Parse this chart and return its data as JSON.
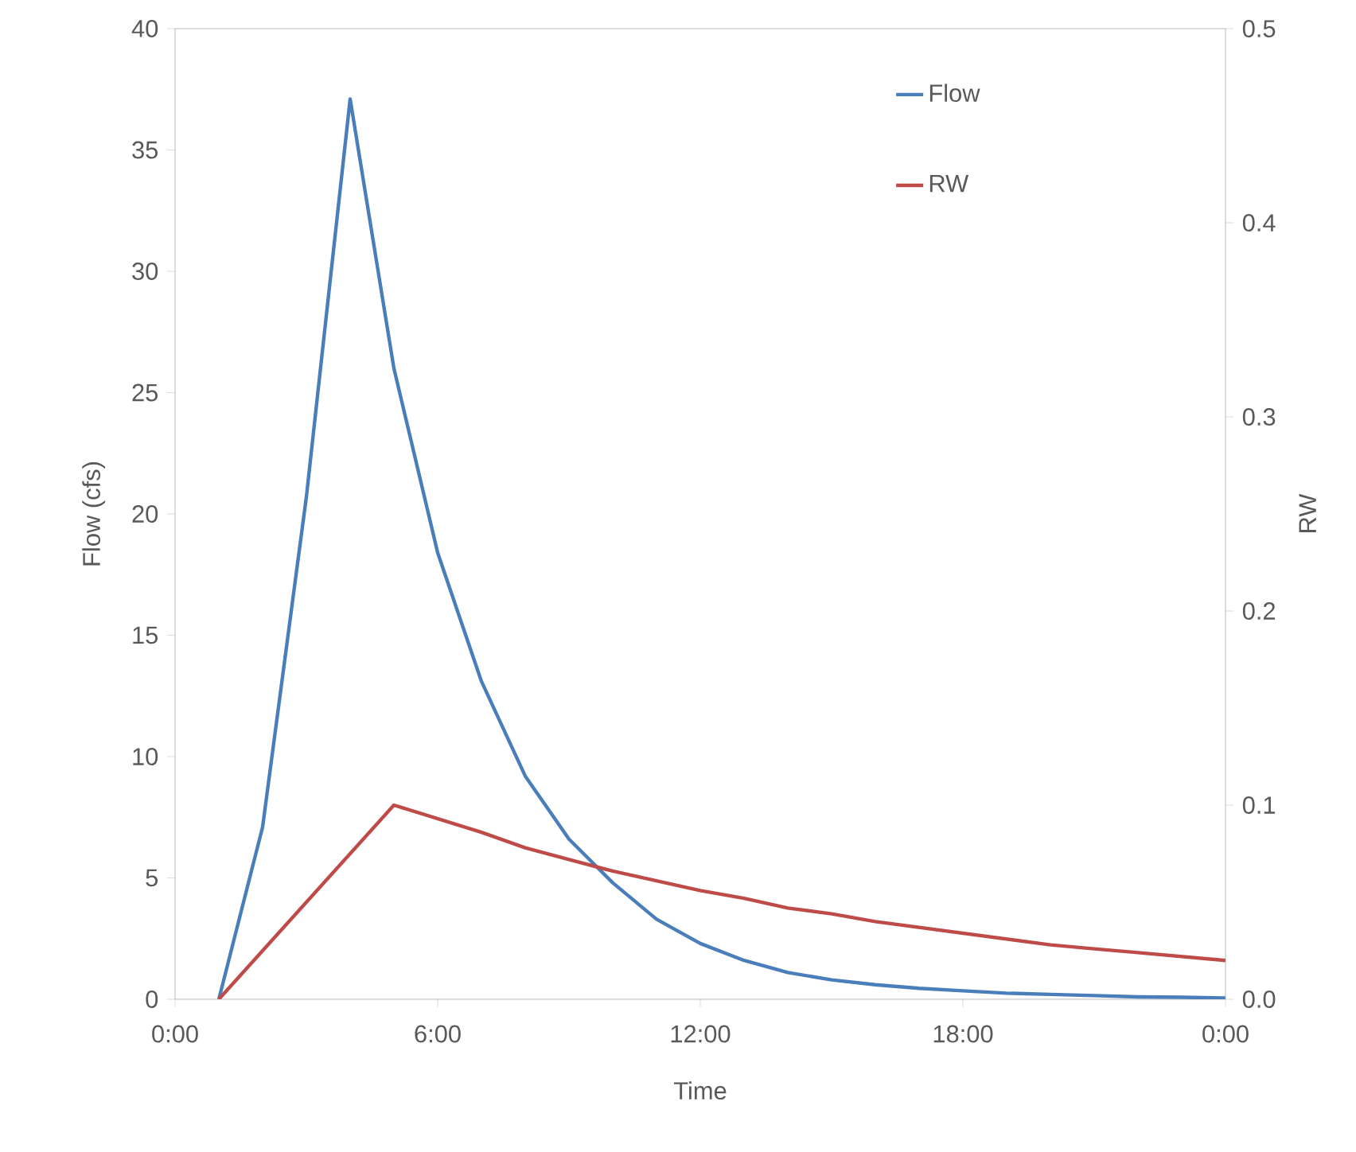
{
  "chart_data": {
    "type": "line",
    "xlabel": "Time",
    "ylabel": "Flow (cfs)",
    "y2label": "RW",
    "x": [
      1,
      2,
      3,
      4,
      5,
      6,
      7,
      8,
      9,
      10,
      11,
      12,
      13,
      14,
      15,
      16,
      17,
      18,
      19,
      20,
      21,
      22,
      23,
      24
    ],
    "series": [
      {
        "name": "Flow",
        "color": "#4a7ebb",
        "values": [
          0,
          7.1,
          20.7,
          37.1,
          26.0,
          18.4,
          13.1,
          9.2,
          6.6,
          4.8,
          3.3,
          2.3,
          1.6,
          1.1,
          0.8,
          0.6,
          0.45,
          0.35,
          0.25,
          0.2,
          0.15,
          0.1,
          0.08,
          0.05
        ]
      },
      {
        "name": "RW",
        "color": "#be4b48",
        "axis": "y2",
        "values": [
          0,
          0.025,
          0.05,
          0.075,
          0.1,
          0.093,
          0.086,
          0.078,
          0.072,
          0.066,
          0.061,
          0.056,
          0.052,
          0.047,
          0.044,
          0.04,
          0.037,
          0.034,
          0.031,
          0.028,
          0.026,
          0.024,
          0.022,
          0.02
        ]
      }
    ],
    "xlim": [
      0,
      24
    ],
    "xticks": [
      {
        "value": 0,
        "label": "0:00"
      },
      {
        "value": 6,
        "label": "6:00"
      },
      {
        "value": 12,
        "label": "12:00"
      },
      {
        "value": 18,
        "label": "18:00"
      },
      {
        "value": 24,
        "label": "0:00"
      }
    ],
    "ylim": [
      0,
      40
    ],
    "yticks": [
      0,
      5,
      10,
      15,
      20,
      25,
      30,
      35,
      40
    ],
    "y2lim": [
      0,
      0.5
    ],
    "y2ticks": [
      {
        "value": 0,
        "label": "0.0"
      },
      {
        "value": 0.1,
        "label": "0.1"
      },
      {
        "value": 0.2,
        "label": "0.2"
      },
      {
        "value": 0.3,
        "label": "0.3"
      },
      {
        "value": 0.4,
        "label": "0.4"
      },
      {
        "value": 0.5,
        "label": "0.5"
      }
    ],
    "grid": false,
    "legend": "top right",
    "marker": "none",
    "line_style": "solid"
  }
}
